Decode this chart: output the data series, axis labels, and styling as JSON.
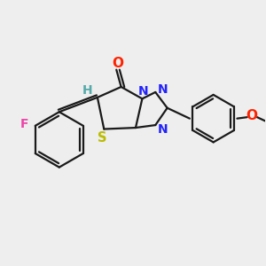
{
  "bg_color": "#eeeeee",
  "bond_color": "#1a1a1a",
  "line_width": 1.6,
  "figsize": [
    3.0,
    3.0
  ],
  "dpi": 100,
  "xlim": [
    0,
    10
  ],
  "ylim": [
    0,
    10
  ],
  "F_color": "#ee44aa",
  "H_color": "#55aaaa",
  "N_color": "#2222ff",
  "S_color": "#bbbb00",
  "O_color": "#ff2200",
  "O2_color": "#ff2200"
}
